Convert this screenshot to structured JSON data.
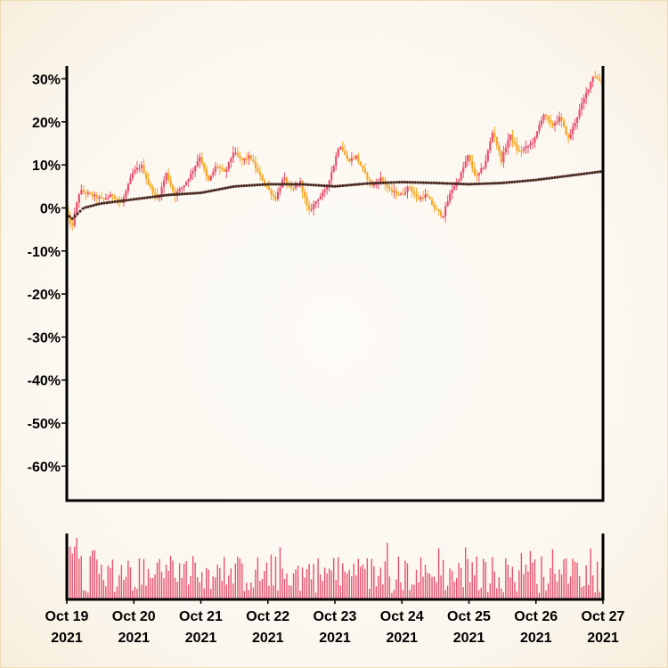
{
  "chart_data": [
    {
      "type": "candlestick",
      "title": "",
      "xlabel": "",
      "ylabel": "",
      "y_unit": "%",
      "ylim": [
        -68,
        33
      ],
      "y_ticks": [
        30,
        20,
        10,
        0,
        -10,
        -20,
        -30,
        -40,
        -50,
        -60
      ],
      "y_tick_labels": [
        "30%",
        "20%",
        "10%",
        "0%",
        "-10%",
        "-20%",
        "-30%",
        "-40%",
        "-50%",
        "-60%"
      ],
      "x_range": [
        "2021-10-19",
        "2021-10-27"
      ],
      "x_ticks": [
        "2021-10-19",
        "2021-10-20",
        "2021-10-21",
        "2021-10-22",
        "2021-10-23",
        "2021-10-24",
        "2021-10-25",
        "2021-10-26",
        "2021-10-27"
      ],
      "x_tick_labels": [
        {
          "day": "Oct 19",
          "year": "2021"
        },
        {
          "day": "Oct 20",
          "year": "2021"
        },
        {
          "day": "Oct 21",
          "year": "2021"
        },
        {
          "day": "Oct 22",
          "year": "2021"
        },
        {
          "day": "Oct 23",
          "year": "2021"
        },
        {
          "day": "Oct 24",
          "year": "2021"
        },
        {
          "day": "Oct 25",
          "year": "2021"
        },
        {
          "day": "Oct 26",
          "year": "2021"
        },
        {
          "day": "Oct 27",
          "year": "2021"
        }
      ],
      "close_path": [
        [
          "2021-10-19T00:00",
          0.0
        ],
        [
          "2021-10-19T02:00",
          -5.0
        ],
        [
          "2021-10-19T05:00",
          4.0
        ],
        [
          "2021-10-19T09:00",
          3.0
        ],
        [
          "2021-10-19T13:00",
          2.0
        ],
        [
          "2021-10-19T17:00",
          3.0
        ],
        [
          "2021-10-19T20:00",
          1.0
        ],
        [
          "2021-10-20T00:00",
          8.0
        ],
        [
          "2021-10-20T03:00",
          10.0
        ],
        [
          "2021-10-20T06:00",
          5.0
        ],
        [
          "2021-10-20T09:00",
          2.0
        ],
        [
          "2021-10-20T12:00",
          8.0
        ],
        [
          "2021-10-20T15:00",
          3.0
        ],
        [
          "2021-10-20T18:00",
          5.0
        ],
        [
          "2021-10-20T21:00",
          8.0
        ],
        [
          "2021-10-21T00:00",
          12.0
        ],
        [
          "2021-10-21T03:00",
          6.0
        ],
        [
          "2021-10-21T06:00",
          10.0
        ],
        [
          "2021-10-21T09:00",
          8.0
        ],
        [
          "2021-10-21T12:00",
          13.0
        ],
        [
          "2021-10-21T15:00",
          11.0
        ],
        [
          "2021-10-21T18:00",
          12.0
        ],
        [
          "2021-10-21T21:00",
          8.0
        ],
        [
          "2021-10-22T00:00",
          5.0
        ],
        [
          "2021-10-22T03:00",
          2.0
        ],
        [
          "2021-10-22T06:00",
          7.0
        ],
        [
          "2021-10-22T09:00",
          4.0
        ],
        [
          "2021-10-22T12:00",
          6.0
        ],
        [
          "2021-10-22T15:00",
          -1.0
        ],
        [
          "2021-10-22T18:00",
          2.0
        ],
        [
          "2021-10-22T21:00",
          4.0
        ],
        [
          "2021-10-23T00:00",
          10.0
        ],
        [
          "2021-10-23T02:00",
          15.0
        ],
        [
          "2021-10-23T05:00",
          11.0
        ],
        [
          "2021-10-23T08:00",
          12.0
        ],
        [
          "2021-10-23T11:00",
          8.0
        ],
        [
          "2021-10-23T14:00",
          5.0
        ],
        [
          "2021-10-23T17:00",
          7.0
        ],
        [
          "2021-10-23T20:00",
          4.0
        ],
        [
          "2021-10-24T00:00",
          3.0
        ],
        [
          "2021-10-24T03:00",
          5.0
        ],
        [
          "2021-10-24T06:00",
          2.0
        ],
        [
          "2021-10-24T09:00",
          3.0
        ],
        [
          "2021-10-24T12:00",
          0.0
        ],
        [
          "2021-10-24T15:00",
          -2.0
        ],
        [
          "2021-10-24T18:00",
          4.0
        ],
        [
          "2021-10-24T21:00",
          7.0
        ],
        [
          "2021-10-25T00:00",
          12.0
        ],
        [
          "2021-10-25T03:00",
          7.0
        ],
        [
          "2021-10-25T06:00",
          10.0
        ],
        [
          "2021-10-25T09:00",
          18.0
        ],
        [
          "2021-10-25T12:00",
          11.0
        ],
        [
          "2021-10-25T15:00",
          17.0
        ],
        [
          "2021-10-25T18:00",
          13.0
        ],
        [
          "2021-10-25T21:00",
          14.0
        ],
        [
          "2021-10-26T00:00",
          16.0
        ],
        [
          "2021-10-26T03:00",
          22.0
        ],
        [
          "2021-10-26T06:00",
          19.0
        ],
        [
          "2021-10-26T09:00",
          21.0
        ],
        [
          "2021-10-26T12:00",
          16.0
        ],
        [
          "2021-10-26T15:00",
          21.0
        ],
        [
          "2021-10-26T18:00",
          26.0
        ],
        [
          "2021-10-26T21:00",
          31.0
        ],
        [
          "2021-10-27T00:00",
          29.0
        ]
      ],
      "moving_average": [
        [
          "2021-10-19T00:00",
          -1.5
        ],
        [
          "2021-10-19T02:00",
          -2.5
        ],
        [
          "2021-10-19T06:00",
          0.0
        ],
        [
          "2021-10-19T12:00",
          1.0
        ],
        [
          "2021-10-20T00:00",
          2.0
        ],
        [
          "2021-10-20T12:00",
          3.0
        ],
        [
          "2021-10-21T00:00",
          3.5
        ],
        [
          "2021-10-21T12:00",
          5.0
        ],
        [
          "2021-10-22T00:00",
          5.5
        ],
        [
          "2021-10-22T12:00",
          5.5
        ],
        [
          "2021-10-23T00:00",
          5.0
        ],
        [
          "2021-10-23T12:00",
          5.7
        ],
        [
          "2021-10-24T00:00",
          6.0
        ],
        [
          "2021-10-24T12:00",
          5.8
        ],
        [
          "2021-10-25T00:00",
          5.5
        ],
        [
          "2021-10-25T12:00",
          5.8
        ],
        [
          "2021-10-26T00:00",
          6.5
        ],
        [
          "2021-10-26T12:00",
          7.5
        ],
        [
          "2021-10-27T00:00",
          8.5
        ]
      ],
      "colors": {
        "up": "#e8506e",
        "down": "#f5a623",
        "moving_average": "#4a2b22",
        "volume": "#e8506e",
        "axis": "#000000"
      },
      "grid": false,
      "legend": "none"
    },
    {
      "type": "bar",
      "title": "",
      "description": "volume",
      "x_range": [
        "2021-10-19",
        "2021-10-27"
      ],
      "bar_count": 240,
      "ylim": [
        0,
        1
      ],
      "grid": false,
      "legend": "none"
    }
  ]
}
